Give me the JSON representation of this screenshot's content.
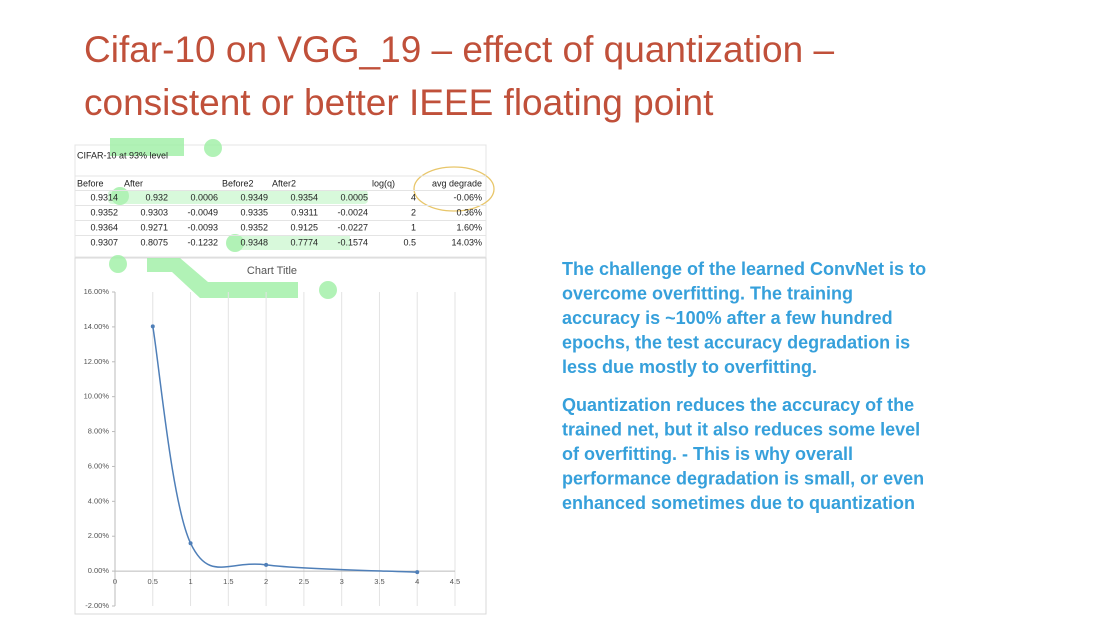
{
  "title": [
    "Cifar-10 on VGG_19 – effect of quantization –",
    "consistent or better IEEE floating point"
  ],
  "table": {
    "caption": "CIFAR-10 at 93% level",
    "header": [
      "Before",
      "After",
      null,
      "Before2",
      "After2",
      null,
      "log(q)",
      "avg degrade"
    ],
    "rows": [
      [
        "0.9314",
        "0.932",
        "0.0006",
        "0.9349",
        "0.9354",
        "0.0005",
        "4",
        "-0.06%"
      ],
      [
        "0.9352",
        "0.9303",
        "-0.0049",
        "0.9335",
        "0.9311",
        "-0.0024",
        "2",
        "0.36%"
      ],
      [
        "0.9364",
        "0.9271",
        "-0.0093",
        "0.9352",
        "0.9125",
        "-0.0227",
        "1",
        "1.60%"
      ],
      [
        "0.9307",
        "0.8075",
        "-0.1232",
        "0.9348",
        "0.7774",
        "-0.1574",
        "0.5",
        "14.03%"
      ]
    ]
  },
  "chart_data": {
    "type": "line",
    "title": "Chart Title",
    "x": [
      0.5,
      1,
      2,
      4
    ],
    "series": [
      {
        "color": "#4f7fb8",
        "values": [
          14.03,
          1.6,
          0.36,
          -0.06
        ]
      }
    ],
    "xlim": [
      0,
      4.5
    ],
    "xticks": [
      0,
      0.5,
      1,
      1.5,
      2,
      2.5,
      3,
      3.5,
      4,
      4.5
    ],
    "ylim": [
      -2,
      16
    ],
    "yticks": [
      {
        "value": -2,
        "label": "-2.00%"
      },
      {
        "value": 0,
        "label": "0.00%"
      },
      {
        "value": 2,
        "label": "2.00%"
      },
      {
        "value": 4,
        "label": "4.00%"
      },
      {
        "value": 6,
        "label": "6.00%"
      },
      {
        "value": 8,
        "label": "8.00%"
      },
      {
        "value": 10,
        "label": "10.00%"
      },
      {
        "value": 12,
        "label": "12.00%"
      },
      {
        "value": 14,
        "label": "14.00%"
      },
      {
        "value": 16,
        "label": "16.00%"
      }
    ],
    "grid": "x",
    "smooth": true
  },
  "paragraphs": [
    [
      "The challenge of the learned ConvNet is to",
      "overcome overfitting. The training",
      "accuracy is ~100% after a few hundred",
      "epochs, the test accuracy degradation is",
      "less due mostly to overfitting."
    ],
    [
      "Quantization reduces the accuracy of the",
      "trained net, but it also reduces some level",
      "of overfitting.  - This is why overall",
      "performance degradation is small, or even",
      "enhanced sometimes due to quantization"
    ]
  ]
}
